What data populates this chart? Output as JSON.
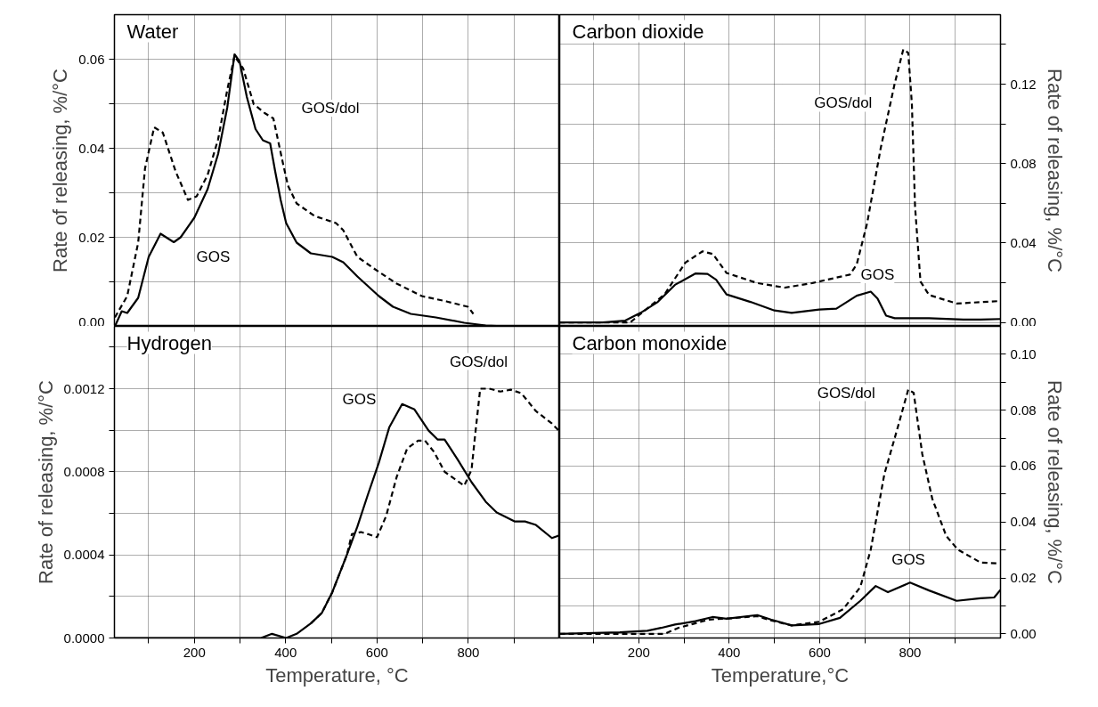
{
  "chart_data": [
    {
      "type": "line",
      "title": "Water",
      "ylabel": "Rate of releasing, %/°C",
      "xlim": [
        25,
        1000
      ],
      "xticks": [
        {
          "value": 100,
          "label": null
        },
        200,
        {
          "value": 300,
          "label": null
        },
        400,
        {
          "value": 500,
          "label": null
        },
        600,
        {
          "value": 700,
          "label": null
        },
        800,
        {
          "value": 900,
          "label": null
        }
      ],
      "ylim": [
        0,
        0.07
      ],
      "yticks": [
        {
          "value": 0,
          "label": "0.00"
        },
        {
          "value": 0.01,
          "label": null
        },
        {
          "value": 0.02,
          "label": "0.02"
        },
        {
          "value": 0.03,
          "label": null
        },
        {
          "value": 0.04,
          "label": "0.04"
        },
        {
          "value": 0.05,
          "label": null
        },
        {
          "value": 0.06,
          "label": "0.06"
        }
      ],
      "grid": true,
      "tick_labels": "y",
      "series": [
        {
          "color": "#000000",
          "line_style": "solid",
          "x": [
            26,
            41,
            53,
            77,
            100,
            126,
            155,
            170,
            200,
            229,
            252,
            272,
            288,
            299,
            315,
            334,
            350,
            366,
            377,
            389,
            401,
            424,
            455,
            502,
            526,
            557,
            604,
            635,
            674,
            729,
            791,
            838,
            885,
            998
          ],
          "values": [
            0,
            0.0034,
            0.003,
            0.0064,
            0.0156,
            0.0208,
            0.0189,
            0.02,
            0.0244,
            0.0308,
            0.0387,
            0.0491,
            0.0611,
            0.0595,
            0.0515,
            0.0443,
            0.0418,
            0.0411,
            0.0348,
            0.0284,
            0.0232,
            0.0188,
            0.0164,
            0.0156,
            0.0144,
            0.0112,
            0.0068,
            0.0044,
            0.0028,
            0.002,
            0.0008,
            0.0002,
            0,
            0
          ]
        },
        {
          "color": "#000000",
          "line_style": "dashed",
          "x": [
            26,
            53,
            77,
            92,
            112,
            131,
            159,
            186,
            205,
            229,
            252,
            272,
            288,
            307,
            330,
            354,
            373,
            393,
            405,
            424,
            463,
            510,
            526,
            557,
            596,
            643,
            698,
            752,
            799,
            811
          ],
          "values": [
            0.002,
            0.0068,
            0.0188,
            0.0355,
            0.0447,
            0.0435,
            0.0348,
            0.0284,
            0.0292,
            0.034,
            0.042,
            0.0531,
            0.0607,
            0.0579,
            0.0499,
            0.0479,
            0.0467,
            0.0371,
            0.0316,
            0.0276,
            0.0248,
            0.0232,
            0.0216,
            0.0156,
            0.0128,
            0.0096,
            0.0068,
            0.0056,
            0.0044,
            0.0028
          ]
        }
      ],
      "annotations": [
        "GOS/dol",
        "GOS"
      ]
    },
    {
      "type": "line",
      "title": "Carbon dioxide",
      "y2label": "Rate of releasing, %/°C",
      "xlim": [
        25,
        1000
      ],
      "xticks": [
        {
          "value": 100,
          "label": null
        },
        200,
        {
          "value": 300,
          "label": null
        },
        400,
        {
          "value": 500,
          "label": null
        },
        600,
        {
          "value": 700,
          "label": null
        },
        800,
        {
          "value": 900,
          "label": null
        }
      ],
      "y2lim": [
        -0.002,
        0.155
      ],
      "y2ticks": [
        {
          "value": 0,
          "label": "0.00"
        },
        {
          "value": 0.02,
          "label": null
        },
        {
          "value": 0.04,
          "label": "0.04"
        },
        {
          "value": 0.06,
          "label": null
        },
        {
          "value": 0.08,
          "label": "0.08"
        },
        {
          "value": 0.1,
          "label": null
        },
        {
          "value": 0.12,
          "label": "0.12"
        },
        {
          "value": 0.14,
          "label": null
        }
      ],
      "grid": true,
      "tick_labels": "y",
      "series": [
        {
          "color": "#000000",
          "line_style": "solid",
          "axis": "y2",
          "x": [
            25,
            120,
            170,
            204,
            242,
            280,
            325,
            352,
            371,
            394,
            447,
            500,
            538,
            599,
            637,
            682,
            713,
            728,
            747,
            766,
            842,
            918,
            956,
            1000
          ],
          "values": [
            0,
            0,
            0.0009,
            0.0048,
            0.0103,
            0.0189,
            0.0246,
            0.0244,
            0.0215,
            0.0141,
            0.0103,
            0.006,
            0.0048,
            0.0065,
            0.0069,
            0.0134,
            0.0155,
            0.012,
            0.0034,
            0.0021,
            0.0021,
            0.0014,
            0.0014,
            0.0017
          ]
        },
        {
          "color": "#000000",
          "line_style": "dashed",
          "axis": "y2",
          "x": [
            25,
            181,
            204,
            257,
            303,
            341,
            364,
            394,
            462,
            523,
            584,
            667,
            682,
            705,
            735,
            766,
            785,
            796,
            804,
            811,
            823,
            842,
            903,
            994
          ],
          "values": [
            0,
            0,
            0.0043,
            0.0141,
            0.0301,
            0.0358,
            0.0344,
            0.0249,
            0.0198,
            0.0175,
            0.0198,
            0.0241,
            0.0292,
            0.0499,
            0.0877,
            0.1203,
            0.1375,
            0.1358,
            0.11,
            0.0584,
            0.0206,
            0.0138,
            0.0095,
            0.0107
          ]
        }
      ],
      "annotations": [
        "GOS/dol",
        "GOS"
      ]
    },
    {
      "type": "line",
      "title": "Hydrogen",
      "xlabel": "Temperature, °C",
      "ylabel": "Rate of releasing, %/°C",
      "xlim": [
        25,
        1000
      ],
      "xticks": [
        {
          "value": 100,
          "label": null
        },
        200,
        {
          "value": 300,
          "label": null
        },
        400,
        {
          "value": 500,
          "label": null
        },
        600,
        {
          "value": 700,
          "label": null
        },
        800,
        {
          "value": 900,
          "label": null
        }
      ],
      "ylim": [
        0,
        0.0015
      ],
      "yticks": [
        {
          "value": 0,
          "label": "0.0000"
        },
        {
          "value": 0.0002,
          "label": null
        },
        {
          "value": 0.0004,
          "label": "0.0004"
        },
        {
          "value": 0.0006,
          "label": null
        },
        {
          "value": 0.0008,
          "label": "0.0008"
        },
        {
          "value": 0.001,
          "label": null
        },
        {
          "value": 0.0012,
          "label": "0.0012"
        },
        {
          "value": 0.0014,
          "label": null
        }
      ],
      "grid": true,
      "series": [
        {
          "color": "#000000",
          "line_style": "solid",
          "x": [
            26,
            264,
            280,
            346,
            370,
            401,
            424,
            455,
            479,
            502,
            534,
            557,
            580,
            604,
            627,
            655,
            682,
            713,
            733,
            748,
            776,
            807,
            838,
            862,
            901,
            924,
            948,
            983,
            998
          ],
          "values": [
            0,
            0,
            0,
            0,
            2e-05,
            0,
            2e-05,
            7e-05,
            0.00012,
            0.00022,
            0.0004,
            0.000536,
            0.00069,
            0.000844,
            0.001015,
            0.001126,
            0.0011,
            0.000998,
            0.000955,
            0.000955,
            0.000861,
            0.00075,
            0.000656,
            0.000604,
            0.000561,
            0.000561,
            0.000544,
            0.000481,
            0.000493
          ]
        },
        {
          "color": "#000000",
          "line_style": "dashed",
          "x": [
            455,
            479,
            502,
            534,
            545,
            565,
            580,
            600,
            620,
            643,
            666,
            690,
            705,
            725,
            748,
            791,
            807,
            815,
            826,
            846,
            870,
            893,
            916,
            948,
            983,
            998
          ],
          "values": [
            7e-05,
            0.00012,
            0.00022,
            0.0004,
            0.0005,
            0.00051,
            0.0005,
            0.000485,
            0.000587,
            0.000775,
            0.000912,
            0.00095,
            0.00095,
            0.000895,
            0.0008,
            0.000733,
            0.00081,
            0.00098,
            0.0012,
            0.0012,
            0.001186,
            0.001195,
            0.001178,
            0.001092,
            0.001032,
            0.000998
          ]
        }
      ],
      "annotations": [
        "GOS",
        "GOS/dol"
      ]
    },
    {
      "type": "line",
      "title": "Carbon monoxide",
      "xlabel": "Temperature,°C",
      "y2label": "Rate of releasing, %/°C",
      "xlim": [
        25,
        1000
      ],
      "xticks": [
        {
          "value": 100,
          "label": null
        },
        200,
        {
          "value": 300,
          "label": null
        },
        400,
        {
          "value": 500,
          "label": null
        },
        600,
        {
          "value": 700,
          "label": null
        },
        800,
        {
          "value": 900,
          "label": null
        }
      ],
      "y2lim": [
        -0.0015,
        0.11
      ],
      "y2ticks": [
        {
          "value": 0,
          "label": "0.00"
        },
        {
          "value": 0.01,
          "label": null
        },
        {
          "value": 0.02,
          "label": "0.02"
        },
        {
          "value": 0.03,
          "label": null
        },
        {
          "value": 0.04,
          "label": "0.04"
        },
        {
          "value": 0.05,
          "label": null
        },
        {
          "value": 0.06,
          "label": "0.06"
        },
        {
          "value": 0.07,
          "label": null
        },
        {
          "value": 0.08,
          "label": "0.08"
        },
        {
          "value": 0.09,
          "label": null
        },
        {
          "value": 0.1,
          "label": "0.10"
        }
      ],
      "grid": true,
      "series": [
        {
          "color": "#000000",
          "line_style": "solid",
          "axis": "y2",
          "x": [
            25,
            158,
            219,
            249,
            280,
            325,
            363,
            394,
            462,
            492,
            538,
            599,
            645,
            690,
            724,
            751,
            800,
            842,
            903,
            956,
            986,
            1000
          ],
          "values": [
            0,
            0.0005,
            0.0011,
            0.0021,
            0.0033,
            0.0045,
            0.006,
            0.0054,
            0.0067,
            0.0051,
            0.003,
            0.0035,
            0.0057,
            0.0118,
            0.0171,
            0.0149,
            0.0183,
            0.0155,
            0.0118,
            0.0127,
            0.013,
            0.0157
          ]
        },
        {
          "color": "#000000",
          "line_style": "dashed",
          "axis": "y2",
          "x": [
            25,
            257,
            287,
            356,
            401,
            462,
            492,
            538,
            599,
            652,
            690,
            713,
            743,
            773,
            796,
            808,
            827,
            849,
            880,
            906,
            956,
            994
          ],
          "values": [
            0,
            0,
            0.0021,
            0.0051,
            0.0055,
            0.0063,
            0.0048,
            0.003,
            0.0043,
            0.0088,
            0.0167,
            0.0301,
            0.057,
            0.074,
            0.0874,
            0.0862,
            0.0643,
            0.0484,
            0.035,
            0.0301,
            0.0255,
            0.0252
          ]
        }
      ],
      "annotations": [
        "GOS/dol",
        "GOS"
      ]
    }
  ]
}
